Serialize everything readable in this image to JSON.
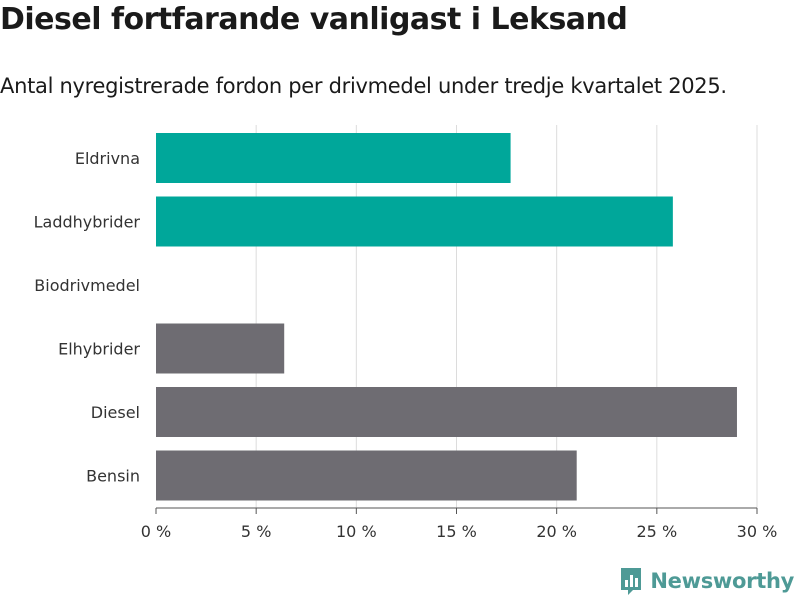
{
  "header": {
    "title": "Diesel fortfarande vanligast i Leksand",
    "subtitle": "Antal nyregistrerade fordon per drivmedel under tredje kvartalet 2025."
  },
  "brand": {
    "name": "Newsworthy"
  },
  "colors": {
    "highlight": "#00a79a",
    "default": "#6e6c72",
    "grid": "#dcdcdc",
    "axis": "#555555",
    "brand": "#4e9a96"
  },
  "chart_data": {
    "type": "bar",
    "orientation": "horizontal",
    "categories": [
      "Eldrivna",
      "Laddhybrider",
      "Biodrivmedel",
      "Elhybrider",
      "Diesel",
      "Bensin"
    ],
    "values": [
      17.7,
      25.8,
      0,
      6.4,
      29.0,
      21.0
    ],
    "highlighted": [
      true,
      true,
      false,
      false,
      false,
      false
    ],
    "xlim": [
      0,
      30
    ],
    "xticks": [
      0,
      5,
      10,
      15,
      20,
      25,
      30
    ],
    "tick_suffix": " %",
    "grid": true,
    "xlabel": "",
    "ylabel": ""
  }
}
